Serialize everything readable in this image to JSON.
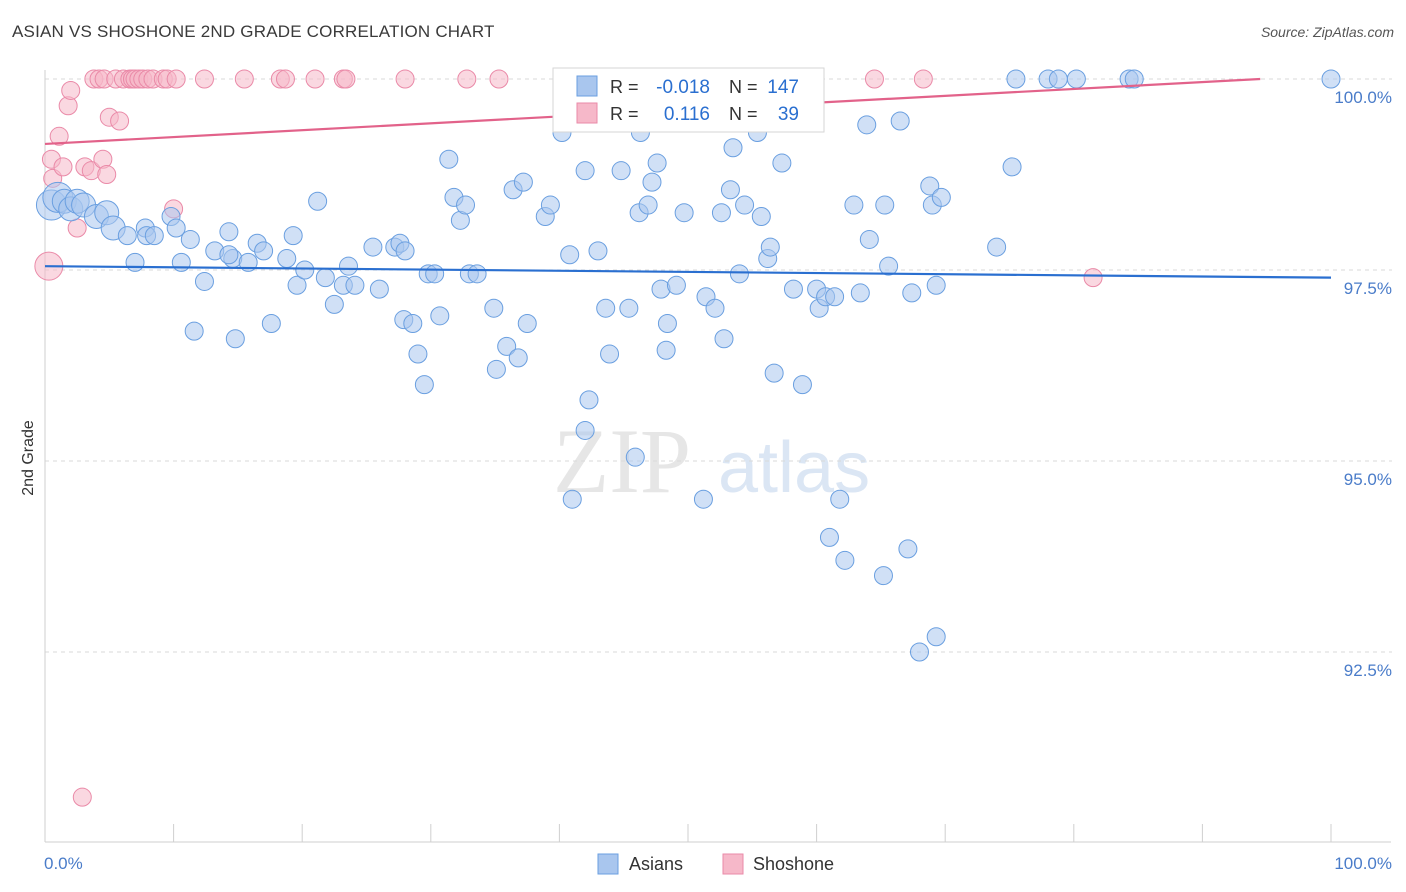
{
  "header": {
    "title": "ASIAN VS SHOSHONE 2ND GRADE CORRELATION CHART",
    "source": "Source: ZipAtlas.com"
  },
  "watermark": {
    "part1": "ZIP",
    "part2": "atlas"
  },
  "legend_box": {
    "rows": [
      {
        "r_label": "R =",
        "r_value": "-0.018",
        "n_label": "N =",
        "n_value": "147"
      },
      {
        "r_label": "R =",
        "r_value": "0.116",
        "n_label": "N =",
        "n_value": "39"
      }
    ]
  },
  "bottom_legend": {
    "items": [
      "Asians",
      "Shoshone"
    ]
  },
  "colors": {
    "asians_fill": "#a9c6ee",
    "asians_stroke": "#6a9fe0",
    "asians_line": "#2a6fd0",
    "shoshone_fill": "#f6b8c9",
    "shoshone_stroke": "#ea8aa8",
    "shoshone_line": "#e2628a",
    "axis_text": "#4a7cc9"
  },
  "chart_data": {
    "type": "scatter",
    "title": "ASIAN VS SHOSHONE 2ND GRADE CORRELATION CHART",
    "ylabel": "2nd Grade",
    "x_tick_labels": [
      "0.0%",
      "100.0%"
    ],
    "y_tick_labels": [
      "100.0%",
      "97.5%",
      "95.0%",
      "92.5%"
    ],
    "xlim": [
      0,
      100
    ],
    "ylim": [
      90.3,
      100.25
    ],
    "y_ticks": [
      100.0,
      97.5,
      95.0,
      92.5
    ],
    "grid": true,
    "series": [
      {
        "name": "Asians",
        "trend": [
          [
            0,
            97.55
          ],
          [
            100,
            97.4
          ]
        ],
        "points": [
          [
            0.5,
            98.35
          ],
          [
            1.0,
            98.45
          ],
          [
            1.5,
            98.4
          ],
          [
            2.0,
            98.3
          ],
          [
            2.5,
            98.4
          ],
          [
            3.0,
            98.35
          ],
          [
            4.0,
            98.2
          ],
          [
            4.8,
            98.25
          ],
          [
            5.3,
            98.05
          ],
          [
            6.4,
            97.95
          ],
          [
            7.0,
            97.6
          ],
          [
            7.8,
            98.05
          ],
          [
            7.9,
            97.95
          ],
          [
            8.5,
            97.95
          ],
          [
            9.8,
            98.2
          ],
          [
            10.2,
            98.05
          ],
          [
            10.6,
            97.6
          ],
          [
            11.3,
            97.9
          ],
          [
            11.6,
            96.7
          ],
          [
            12.4,
            97.35
          ],
          [
            13.2,
            97.75
          ],
          [
            14.3,
            98.0
          ],
          [
            14.6,
            97.65
          ],
          [
            14.3,
            97.7
          ],
          [
            14.8,
            96.6
          ],
          [
            15.8,
            97.6
          ],
          [
            16.5,
            97.85
          ],
          [
            17.0,
            97.75
          ],
          [
            17.6,
            96.8
          ],
          [
            18.8,
            97.65
          ],
          [
            19.3,
            97.95
          ],
          [
            19.6,
            97.3
          ],
          [
            21.2,
            98.4
          ],
          [
            20.2,
            97.5
          ],
          [
            21.8,
            97.4
          ],
          [
            22.5,
            97.05
          ],
          [
            23.2,
            97.3
          ],
          [
            23.6,
            97.55
          ],
          [
            24.1,
            97.3
          ],
          [
            25.5,
            97.8
          ],
          [
            26.0,
            97.25
          ],
          [
            27.2,
            97.8
          ],
          [
            27.6,
            97.85
          ],
          [
            28.0,
            97.75
          ],
          [
            27.9,
            96.85
          ],
          [
            28.6,
            96.8
          ],
          [
            29.0,
            96.4
          ],
          [
            29.5,
            96.0
          ],
          [
            29.8,
            97.45
          ],
          [
            30.3,
            97.45
          ],
          [
            30.7,
            96.9
          ],
          [
            31.4,
            98.95
          ],
          [
            31.8,
            98.45
          ],
          [
            32.3,
            98.15
          ],
          [
            32.7,
            98.35
          ],
          [
            33.0,
            97.45
          ],
          [
            33.6,
            97.45
          ],
          [
            34.9,
            97.0
          ],
          [
            35.1,
            96.2
          ],
          [
            35.9,
            96.5
          ],
          [
            36.4,
            98.55
          ],
          [
            36.8,
            96.35
          ],
          [
            37.2,
            98.65
          ],
          [
            37.5,
            96.8
          ],
          [
            38.9,
            98.2
          ],
          [
            39.3,
            98.35
          ],
          [
            40.2,
            99.3
          ],
          [
            40.8,
            97.7
          ],
          [
            41.0,
            94.5
          ],
          [
            42.0,
            98.8
          ],
          [
            42.0,
            95.4
          ],
          [
            42.3,
            95.8
          ],
          [
            43.0,
            97.75
          ],
          [
            43.6,
            97.0
          ],
          [
            43.9,
            96.4
          ],
          [
            44.8,
            98.8
          ],
          [
            45.4,
            97.0
          ],
          [
            45.9,
            95.05
          ],
          [
            46.3,
            99.3
          ],
          [
            46.2,
            98.25
          ],
          [
            46.9,
            98.35
          ],
          [
            47.2,
            98.65
          ],
          [
            47.6,
            98.9
          ],
          [
            47.9,
            97.25
          ],
          [
            48.4,
            96.8
          ],
          [
            48.3,
            96.45
          ],
          [
            49.1,
            97.3
          ],
          [
            49.7,
            98.25
          ],
          [
            51.2,
            94.5
          ],
          [
            51.4,
            97.15
          ],
          [
            52.1,
            97.0
          ],
          [
            52.6,
            98.25
          ],
          [
            52.8,
            96.6
          ],
          [
            53.3,
            98.55
          ],
          [
            53.5,
            99.1
          ],
          [
            54.0,
            97.45
          ],
          [
            54.4,
            98.35
          ],
          [
            55.4,
            99.3
          ],
          [
            55.7,
            98.2
          ],
          [
            56.2,
            97.65
          ],
          [
            56.4,
            97.8
          ],
          [
            56.7,
            96.15
          ],
          [
            57.3,
            98.9
          ],
          [
            58.2,
            97.25
          ],
          [
            58.9,
            96.0
          ],
          [
            60.0,
            97.25
          ],
          [
            60.2,
            97.0
          ],
          [
            60.7,
            97.15
          ],
          [
            61.0,
            94.0
          ],
          [
            61.8,
            94.5
          ],
          [
            61.4,
            97.15
          ],
          [
            62.2,
            93.7
          ],
          [
            62.9,
            98.35
          ],
          [
            63.4,
            97.2
          ],
          [
            63.9,
            99.4
          ],
          [
            64.1,
            97.9
          ],
          [
            65.6,
            97.55
          ],
          [
            65.3,
            98.35
          ],
          [
            65.2,
            93.5
          ],
          [
            66.5,
            99.45
          ],
          [
            67.1,
            93.85
          ],
          [
            67.4,
            97.2
          ],
          [
            68.0,
            92.5
          ],
          [
            68.8,
            98.6
          ],
          [
            69.0,
            98.35
          ],
          [
            69.3,
            97.3
          ],
          [
            69.7,
            98.45
          ],
          [
            69.3,
            92.7
          ],
          [
            74.0,
            97.8
          ],
          [
            75.2,
            98.85
          ],
          [
            75.5,
            100.0
          ],
          [
            78.0,
            100.0
          ],
          [
            78.8,
            100.0
          ],
          [
            80.2,
            100.0
          ],
          [
            84.3,
            100.0
          ],
          [
            84.7,
            100.0
          ],
          [
            100.0,
            100.0
          ]
        ]
      },
      {
        "name": "Shoshone",
        "trend": [
          [
            0,
            99.15
          ],
          [
            94.5,
            100.0
          ]
        ],
        "points": [
          [
            0.3,
            97.55
          ],
          [
            0.5,
            98.95
          ],
          [
            0.6,
            98.7
          ],
          [
            1.1,
            99.25
          ],
          [
            1.4,
            98.85
          ],
          [
            1.8,
            99.65
          ],
          [
            2.0,
            99.85
          ],
          [
            2.5,
            98.05
          ],
          [
            3.1,
            98.85
          ],
          [
            3.6,
            98.8
          ],
          [
            3.8,
            100.0
          ],
          [
            4.2,
            100.0
          ],
          [
            4.5,
            98.95
          ],
          [
            4.6,
            100.0
          ],
          [
            4.8,
            98.75
          ],
          [
            5.0,
            99.5
          ],
          [
            5.5,
            100.0
          ],
          [
            5.8,
            99.45
          ],
          [
            6.1,
            100.0
          ],
          [
            6.6,
            100.0
          ],
          [
            6.8,
            100.0
          ],
          [
            7.0,
            100.0
          ],
          [
            7.3,
            100.0
          ],
          [
            7.6,
            100.0
          ],
          [
            8.0,
            100.0
          ],
          [
            8.4,
            100.0
          ],
          [
            9.2,
            100.0
          ],
          [
            9.5,
            100.0
          ],
          [
            10.0,
            98.3
          ],
          [
            10.2,
            100.0
          ],
          [
            12.4,
            100.0
          ],
          [
            15.5,
            100.0
          ],
          [
            18.3,
            100.0
          ],
          [
            18.7,
            100.0
          ],
          [
            21.0,
            100.0
          ],
          [
            23.2,
            100.0
          ],
          [
            23.4,
            100.0
          ],
          [
            28.0,
            100.0
          ],
          [
            32.8,
            100.0
          ],
          [
            35.3,
            100.0
          ],
          [
            64.5,
            100.0
          ],
          [
            68.3,
            100.0
          ],
          [
            81.5,
            97.4
          ],
          [
            2.9,
            90.6
          ]
        ]
      }
    ]
  }
}
